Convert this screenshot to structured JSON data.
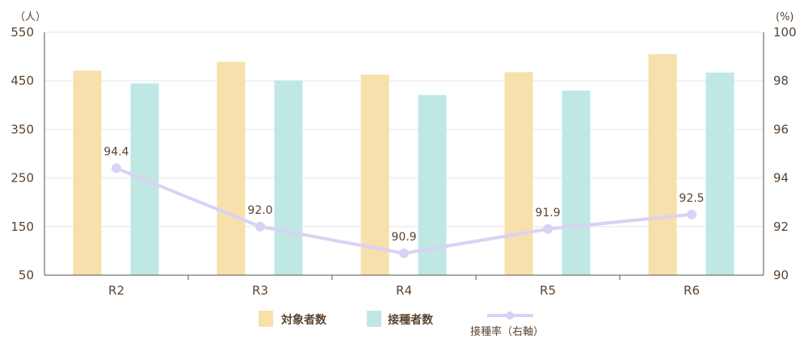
{
  "chart_data": {
    "type": "bar",
    "categories": [
      "R2",
      "R3",
      "R4",
      "R5",
      "R6"
    ],
    "series": [
      {
        "name": "対象者数",
        "type": "bar",
        "axis": "left",
        "color": "#f7e0ab",
        "values": [
          471,
          489,
          463,
          468,
          505
        ]
      },
      {
        "name": "接種者数",
        "type": "bar",
        "axis": "left",
        "color": "#bfe8e4",
        "values": [
          445,
          451,
          421,
          430,
          467
        ]
      },
      {
        "name": "接種率（右軸）",
        "type": "line",
        "axis": "right",
        "color": "#d9d2f5",
        "values": [
          94.4,
          92.0,
          90.9,
          91.9,
          92.5
        ]
      }
    ],
    "left_axis": {
      "unit": "（人）",
      "min": 50,
      "max": 550,
      "ticks": [
        50,
        150,
        250,
        350,
        450,
        550
      ]
    },
    "right_axis": {
      "unit": "(%)",
      "min": 90,
      "max": 100,
      "ticks": [
        90,
        92,
        94,
        96,
        98,
        100
      ]
    },
    "data_labels": [
      "94.4",
      "92.0",
      "90.9",
      "91.9",
      "92.5"
    ],
    "grid": true,
    "legend_position": "bottom"
  }
}
